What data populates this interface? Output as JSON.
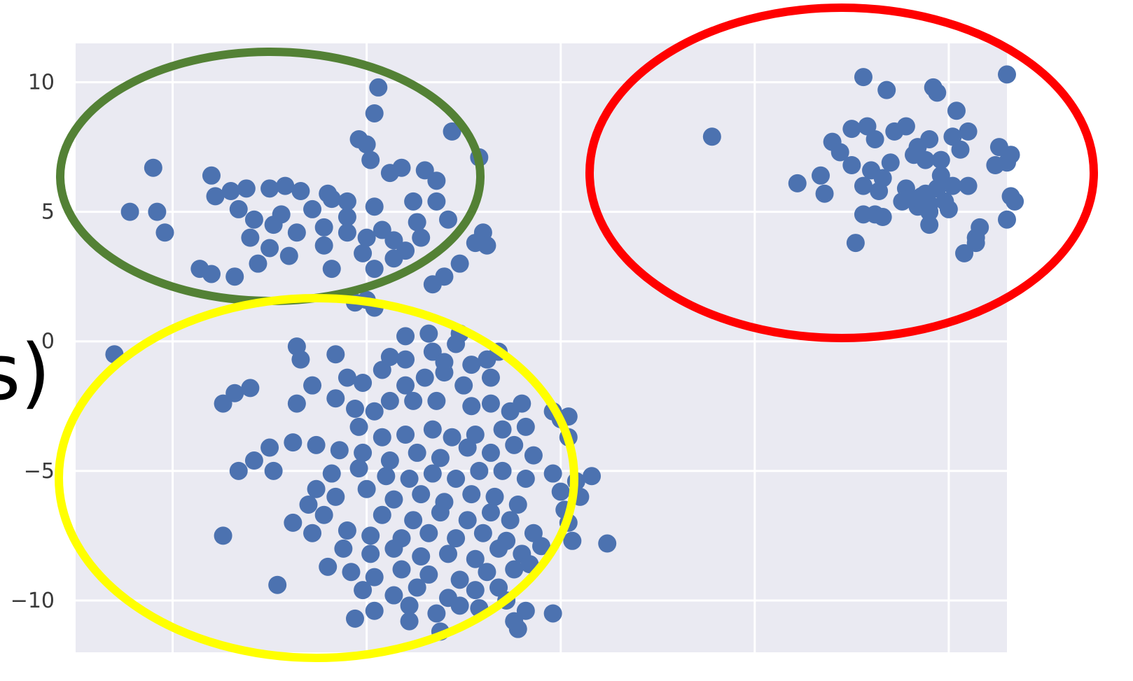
{
  "page_fragment_text": "s)",
  "chart_data": {
    "type": "scatter",
    "title": "",
    "xlabel": "",
    "ylabel": "",
    "xlim": [
      -10,
      14
    ],
    "ylim": [
      -12,
      11.5
    ],
    "yticks": [
      10,
      5,
      0,
      -5,
      -10
    ],
    "ytick_labels": [
      "10",
      "5",
      "0",
      "−5",
      "−10"
    ],
    "xgrid": [
      -7.5,
      -2.5,
      2.5,
      7.5,
      12.5
    ],
    "grid": true,
    "marker_color": "#4c72b0",
    "background": "#eaeaf2",
    "points": [
      [
        -2.2,
        9.8
      ],
      [
        -2.3,
        8.8
      ],
      [
        -2.7,
        7.8
      ],
      [
        -2.5,
        7.6
      ],
      [
        -2.4,
        7
      ],
      [
        -0.3,
        8.1
      ],
      [
        0.4,
        7.1
      ],
      [
        -8.0,
        6.7
      ],
      [
        -8.6,
        5.0
      ],
      [
        -7.9,
        5.0
      ],
      [
        -7.7,
        4.2
      ],
      [
        -6.5,
        6.4
      ],
      [
        -6.4,
        5.6
      ],
      [
        -6.0,
        5.8
      ],
      [
        -5.6,
        5.9
      ],
      [
        -5.0,
        5.9
      ],
      [
        -4.2,
        5.8
      ],
      [
        -3.5,
        5.7
      ],
      [
        -3.0,
        5.4
      ],
      [
        -2.3,
        5.2
      ],
      [
        -1.9,
        6.5
      ],
      [
        -1.6,
        6.7
      ],
      [
        -1.0,
        6.6
      ],
      [
        -0.7,
        6.2
      ],
      [
        -0.7,
        5.4
      ],
      [
        -1.3,
        5.4
      ],
      [
        -5.8,
        5.1
      ],
      [
        -5.4,
        4.7
      ],
      [
        -4.9,
        4.5
      ],
      [
        -4.3,
        4.2
      ],
      [
        -3.6,
        4.4
      ],
      [
        -3.0,
        4.2
      ],
      [
        -2.5,
        4.0
      ],
      [
        -1.8,
        3.9
      ],
      [
        -1.2,
        4.6
      ],
      [
        -1.1,
        4.0
      ],
      [
        -0.4,
        4.7
      ],
      [
        0.5,
        4.2
      ],
      [
        -5.5,
        4.0
      ],
      [
        -5.0,
        3.6
      ],
      [
        -4.5,
        3.3
      ],
      [
        -3.6,
        3.7
      ],
      [
        -2.6,
        3.4
      ],
      [
        -1.8,
        3.2
      ],
      [
        -6.8,
        2.8
      ],
      [
        -6.5,
        2.6
      ],
      [
        -5.9,
        2.5
      ],
      [
        -5.3,
        3.0
      ],
      [
        -3.4,
        2.8
      ],
      [
        -2.3,
        2.8
      ],
      [
        -0.1,
        3.0
      ],
      [
        -0.5,
        2.5
      ],
      [
        -0.8,
        2.2
      ],
      [
        0.3,
        3.8
      ],
      [
        0.6,
        3.7
      ],
      [
        -2.5,
        1.6
      ],
      [
        -3.0,
        4.8
      ],
      [
        -3.9,
        5.1
      ],
      [
        -4.7,
        4.9
      ],
      [
        -2.1,
        4.3
      ],
      [
        -3.4,
        5.5
      ],
      [
        -1.5,
        3.5
      ],
      [
        -4.6,
        6.0
      ],
      [
        -2.8,
        1.5
      ],
      [
        -2.3,
        1.3
      ],
      [
        -9.0,
        -0.5
      ],
      [
        10.3,
        10.2
      ],
      [
        10.9,
        9.7
      ],
      [
        12.1,
        9.8
      ],
      [
        12.2,
        9.6
      ],
      [
        12.7,
        8.9
      ],
      [
        14.0,
        10.3
      ],
      [
        6.4,
        7.9
      ],
      [
        9.5,
        7.7
      ],
      [
        9.7,
        7.3
      ],
      [
        10.0,
        8.2
      ],
      [
        10.4,
        8.3
      ],
      [
        10.6,
        7.8
      ],
      [
        11.1,
        8.1
      ],
      [
        11.4,
        8.3
      ],
      [
        11.7,
        7.5
      ],
      [
        12.0,
        7.8
      ],
      [
        12.6,
        7.9
      ],
      [
        12.8,
        7.4
      ],
      [
        13.0,
        8.1
      ],
      [
        10.0,
        6.8
      ],
      [
        10.5,
        6.6
      ],
      [
        11.0,
        6.9
      ],
      [
        11.6,
        7.2
      ],
      [
        12.3,
        7.0
      ],
      [
        13.8,
        7.5
      ],
      [
        14.1,
        7.2
      ],
      [
        14.0,
        6.9
      ],
      [
        13.7,
        6.8
      ],
      [
        9.2,
        6.4
      ],
      [
        8.6,
        6.1
      ],
      [
        9.3,
        5.7
      ],
      [
        10.3,
        6.0
      ],
      [
        10.7,
        5.8
      ],
      [
        11.4,
        5.9
      ],
      [
        11.8,
        5.6
      ],
      [
        12.2,
        5.9
      ],
      [
        12.6,
        6.0
      ],
      [
        13.0,
        6.0
      ],
      [
        11.3,
        5.4
      ],
      [
        11.7,
        5.2
      ],
      [
        12.0,
        5.0
      ],
      [
        12.4,
        5.4
      ],
      [
        12.5,
        5.1
      ],
      [
        10.3,
        4.9
      ],
      [
        10.6,
        4.9
      ],
      [
        10.8,
        4.8
      ],
      [
        11.5,
        5.5
      ],
      [
        12.0,
        5.3
      ],
      [
        12.0,
        4.5
      ],
      [
        13.3,
        4.4
      ],
      [
        13.2,
        4.0
      ],
      [
        14.0,
        4.7
      ],
      [
        14.1,
        5.6
      ],
      [
        14.2,
        5.4
      ],
      [
        10.1,
        3.8
      ],
      [
        12.9,
        3.4
      ],
      [
        13.2,
        3.8
      ],
      [
        11.9,
        7.0
      ],
      [
        12.3,
        6.4
      ],
      [
        10.8,
        6.3
      ],
      [
        11.9,
        5.7
      ],
      [
        -1.5,
        0.2
      ],
      [
        -0.9,
        0.3
      ],
      [
        -0.2,
        -0.1
      ],
      [
        -0.1,
        0.3
      ],
      [
        -0.8,
        -0.4
      ],
      [
        0.9,
        -0.4
      ],
      [
        -4.3,
        -0.2
      ],
      [
        -4.2,
        -0.7
      ],
      [
        -3.3,
        -0.5
      ],
      [
        -1.9,
        -0.6
      ],
      [
        -1.5,
        -0.7
      ],
      [
        -0.5,
        -0.8
      ],
      [
        0.2,
        -0.9
      ],
      [
        0.6,
        -0.7
      ],
      [
        -6.2,
        -2.4
      ],
      [
        -5.9,
        -2.0
      ],
      [
        -5.5,
        -1.8
      ],
      [
        -4.3,
        -2.4
      ],
      [
        -3.9,
        -1.7
      ],
      [
        -3.3,
        -2.2
      ],
      [
        -3.0,
        -1.4
      ],
      [
        -2.6,
        -1.6
      ],
      [
        -2.1,
        -1.1
      ],
      [
        -1.5,
        -1.7
      ],
      [
        -1.0,
        -1.4
      ],
      [
        -0.5,
        -1.2
      ],
      [
        0.0,
        -1.7
      ],
      [
        0.7,
        -1.4
      ],
      [
        -2.8,
        -2.6
      ],
      [
        -2.3,
        -2.7
      ],
      [
        -1.9,
        -2.3
      ],
      [
        -1.3,
        -2.3
      ],
      [
        -0.7,
        -2.3
      ],
      [
        0.2,
        -2.5
      ],
      [
        0.7,
        -2.4
      ],
      [
        1.2,
        -2.7
      ],
      [
        1.5,
        -2.4
      ],
      [
        2.3,
        -2.7
      ],
      [
        2.7,
        -2.9
      ],
      [
        -2.7,
        -3.3
      ],
      [
        -2.1,
        -3.7
      ],
      [
        -1.5,
        -3.6
      ],
      [
        -0.8,
        -3.4
      ],
      [
        -0.3,
        -3.7
      ],
      [
        0.3,
        -3.6
      ],
      [
        1.0,
        -3.4
      ],
      [
        1.6,
        -3.3
      ],
      [
        -5.0,
        -4.1
      ],
      [
        -4.4,
        -3.9
      ],
      [
        -3.8,
        -4.0
      ],
      [
        -3.2,
        -4.2
      ],
      [
        -2.6,
        -4.3
      ],
      [
        -1.9,
        -4.6
      ],
      [
        -1.2,
        -4.3
      ],
      [
        -0.6,
        -4.5
      ],
      [
        0.1,
        -4.1
      ],
      [
        0.7,
        -4.3
      ],
      [
        1.3,
        -4.0
      ],
      [
        1.8,
        -4.4
      ],
      [
        -5.8,
        -5.0
      ],
      [
        -5.4,
        -4.6
      ],
      [
        -4.9,
        -5.0
      ],
      [
        -3.4,
        -5.1
      ],
      [
        -2.7,
        -4.9
      ],
      [
        -2.0,
        -5.2
      ],
      [
        -1.4,
        -5.3
      ],
      [
        -0.8,
        -5.1
      ],
      [
        -0.2,
        -5.3
      ],
      [
        0.4,
        -5.0
      ],
      [
        1.0,
        -5.0
      ],
      [
        1.6,
        -5.3
      ],
      [
        2.3,
        -5.1
      ],
      [
        2.9,
        -5.4
      ],
      [
        -3.8,
        -5.7
      ],
      [
        -3.3,
        -6.0
      ],
      [
        -2.5,
        -5.7
      ],
      [
        -1.8,
        -6.1
      ],
      [
        -1.1,
        -5.9
      ],
      [
        -0.5,
        -6.2
      ],
      [
        0.2,
        -5.9
      ],
      [
        0.8,
        -6.0
      ],
      [
        1.4,
        -6.3
      ],
      [
        2.5,
        -5.8
      ],
      [
        -4.0,
        -6.3
      ],
      [
        -3.6,
        -6.7
      ],
      [
        -2.1,
        -6.7
      ],
      [
        -1.3,
        -6.9
      ],
      [
        -0.6,
        -6.6
      ],
      [
        0.1,
        -6.9
      ],
      [
        0.7,
        -6.6
      ],
      [
        1.2,
        -6.9
      ],
      [
        2.6,
        -6.5
      ],
      [
        -4.4,
        -7.0
      ],
      [
        -3.9,
        -7.4
      ],
      [
        -3.0,
        -7.3
      ],
      [
        -2.4,
        -7.5
      ],
      [
        -1.6,
        -7.6
      ],
      [
        -0.9,
        -7.4
      ],
      [
        -0.2,
        -7.6
      ],
      [
        0.5,
        -7.4
      ],
      [
        1.1,
        -7.7
      ],
      [
        1.8,
        -7.4
      ],
      [
        -3.1,
        -8.0
      ],
      [
        -2.4,
        -8.2
      ],
      [
        -1.8,
        -8.0
      ],
      [
        -1.1,
        -8.3
      ],
      [
        -0.4,
        -8.2
      ],
      [
        0.3,
        -8.4
      ],
      [
        0.9,
        -8.0
      ],
      [
        1.5,
        -8.2
      ],
      [
        2.0,
        -7.9
      ],
      [
        2.8,
        -7.7
      ],
      [
        -3.5,
        -8.7
      ],
      [
        -2.9,
        -8.9
      ],
      [
        -2.3,
        -9.1
      ],
      [
        -1.6,
        -8.8
      ],
      [
        -0.9,
        -9.0
      ],
      [
        -0.1,
        -9.2
      ],
      [
        0.6,
        -8.9
      ],
      [
        1.3,
        -8.8
      ],
      [
        1.7,
        -8.6
      ],
      [
        -2.6,
        -9.6
      ],
      [
        -1.8,
        -9.8
      ],
      [
        -1.2,
        -9.5
      ],
      [
        -0.4,
        -9.9
      ],
      [
        0.3,
        -9.6
      ],
      [
        0.9,
        -9.5
      ],
      [
        1.1,
        -10.0
      ],
      [
        -2.3,
        -10.4
      ],
      [
        -1.4,
        -10.2
      ],
      [
        -0.7,
        -10.5
      ],
      [
        -0.1,
        -10.2
      ],
      [
        0.4,
        -10.3
      ],
      [
        -6.2,
        -7.5
      ],
      [
        -4.8,
        -9.4
      ],
      [
        1.3,
        -10.8
      ],
      [
        1.6,
        -10.4
      ],
      [
        1.4,
        -11.1
      ],
      [
        -2.8,
        -10.7
      ],
      [
        -1.4,
        -10.8
      ],
      [
        -0.6,
        -11.2
      ],
      [
        2.3,
        -10.5
      ],
      [
        2.7,
        -7.0
      ],
      [
        3.3,
        -5.2
      ],
      [
        3.7,
        -7.8
      ],
      [
        3.0,
        -6.0
      ],
      [
        2.5,
        -3.0
      ],
      [
        2.7,
        -3.7
      ]
    ],
    "annotations": [
      {
        "shape": "ellipse",
        "color": "#538135"
      },
      {
        "shape": "ellipse",
        "color": "#ff0000"
      },
      {
        "shape": "ellipse",
        "color": "#ffff00"
      }
    ]
  }
}
